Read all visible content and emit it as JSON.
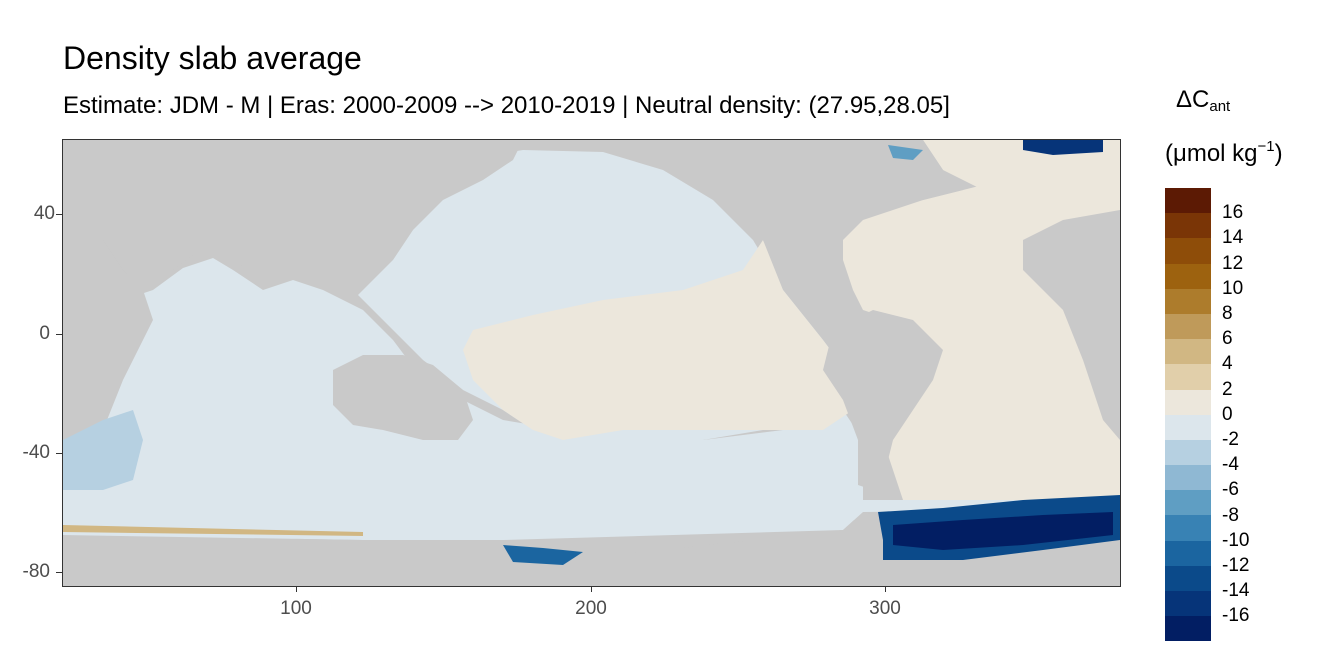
{
  "title": "Density slab average",
  "subtitle": "Estimate: JDM - M | Eras: 2000-2009 --> 2010-2019 | Neutral density: (27.95,28.05]",
  "map": {
    "x_ticks": [
      "100",
      "200",
      "300"
    ],
    "y_ticks": [
      "40",
      "0",
      "-40",
      "-80"
    ],
    "land_color": "#c9c9c9",
    "missing_color": "#ffffff"
  },
  "legend": {
    "title_main": "ΔC",
    "title_sub": "ant",
    "unit_prefix": "(μmol kg",
    "unit_sup": "−1",
    "unit_suffix": ")",
    "labels": [
      "16",
      "14",
      "12",
      "10",
      "8",
      "6",
      "4",
      "2",
      "0",
      "-2",
      "-4",
      "-6",
      "-8",
      "-10",
      "-12",
      "-14",
      "-16"
    ],
    "colors": [
      "#5c1a04",
      "#7a3506",
      "#8e4d09",
      "#9d620f",
      "#ad7c2c",
      "#bf9a5a",
      "#d1b783",
      "#e1cfaa",
      "#ece7dc",
      "#dce6ec",
      "#b6d0e1",
      "#8fb8d3",
      "#5f9ec3",
      "#3882b4",
      "#1b65a0",
      "#0b4a8a",
      "#063479",
      "#021e63"
    ]
  }
}
